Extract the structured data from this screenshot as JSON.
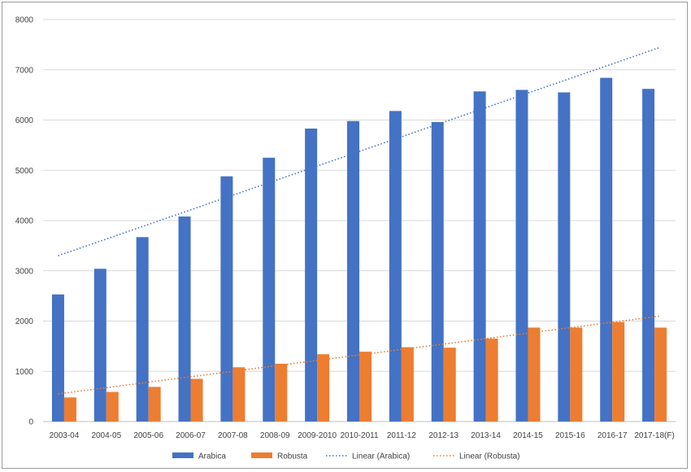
{
  "chart_data": {
    "type": "bar",
    "title": "",
    "xlabel": "",
    "ylabel": "",
    "categories": [
      "2003-04",
      "2004-05",
      "2005-06",
      "2006-07",
      "2007-08",
      "2008-09",
      "2009-2010",
      "2010-2011",
      "2011-12",
      "2012-13",
      "2013-14",
      "2014-15",
      "2015-16",
      "2016-17",
      "2017-18(F)"
    ],
    "series": [
      {
        "name": "Arabica",
        "color": "#4472c4",
        "values": [
          2530,
          3040,
          3670,
          4080,
          4880,
          5250,
          5830,
          5980,
          6180,
          5960,
          6570,
          6600,
          6550,
          6840,
          6620
        ]
      },
      {
        "name": "Robusta",
        "color": "#ed7d31",
        "values": [
          480,
          590,
          690,
          850,
          1080,
          1150,
          1340,
          1390,
          1480,
          1470,
          1650,
          1870,
          1870,
          1980,
          1870
        ]
      }
    ],
    "trendlines": [
      {
        "name": "Linear (Arabica)",
        "color": "#4472c4",
        "style": "dotted",
        "start": 3300,
        "end": 7450
      },
      {
        "name": "Linear (Robusta)",
        "color": "#ed7d31",
        "style": "dotted",
        "start": 550,
        "end": 2100
      }
    ],
    "ylim": [
      0,
      8000
    ],
    "yticks": [
      0,
      1000,
      2000,
      3000,
      4000,
      5000,
      6000,
      7000,
      8000
    ],
    "grid": true,
    "legend_position": "bottom"
  }
}
